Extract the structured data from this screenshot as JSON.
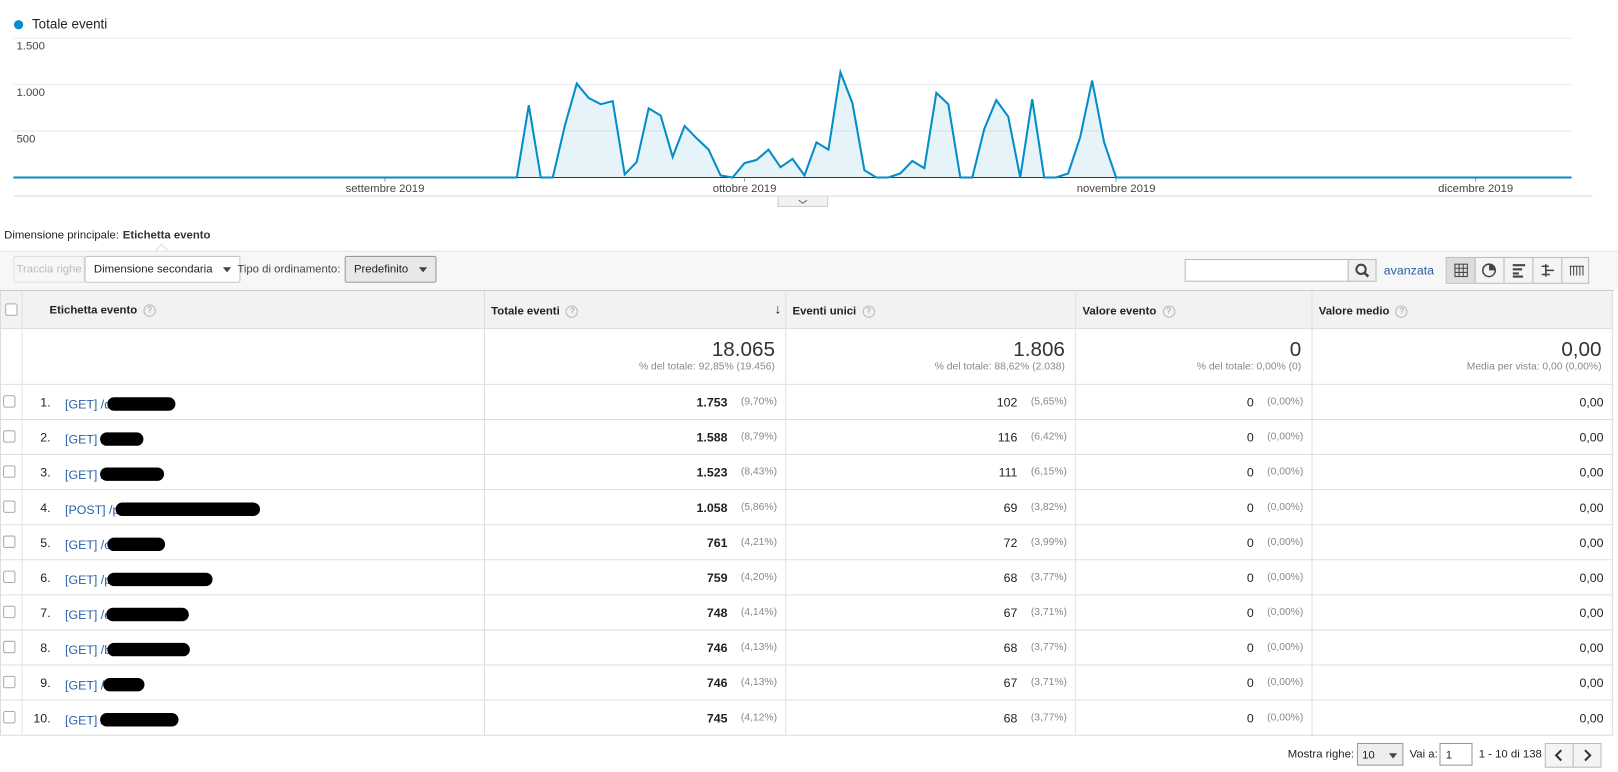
{
  "chart_data": {
    "type": "line",
    "categories": [
      null,
      null,
      null,
      null,
      null,
      null,
      null,
      null,
      null,
      null,
      null,
      null,
      null,
      null,
      null,
      null,
      null,
      null,
      null,
      null,
      null,
      null,
      null,
      null,
      null,
      null,
      null,
      null,
      null,
      null,
      null,
      "settembre 2019",
      null,
      null,
      null,
      null,
      null,
      null,
      null,
      null,
      null,
      null,
      null,
      null,
      null,
      null,
      null,
      null,
      null,
      null,
      null,
      null,
      null,
      null,
      null,
      null,
      null,
      null,
      null,
      null,
      null,
      "ottobre 2019",
      null,
      null,
      null,
      null,
      null,
      null,
      null,
      null,
      null,
      null,
      null,
      null,
      null,
      null,
      null,
      null,
      null,
      null,
      null,
      null,
      null,
      null,
      null,
      null,
      null,
      null,
      null,
      null,
      null,
      null,
      "novembre 2019",
      null,
      null,
      null,
      null,
      null,
      null,
      null,
      null,
      null,
      null,
      null,
      null,
      null,
      null,
      null,
      null,
      null,
      null,
      null,
      null,
      null,
      null,
      null,
      null,
      null,
      null,
      null,
      null,
      null,
      "dicembre 2019",
      null,
      null,
      null,
      null,
      null,
      null,
      null,
      null
    ],
    "series": [
      {
        "name": "Totale eventi",
        "color": "#058dc7",
        "values": [
          0,
          0,
          0,
          0,
          0,
          0,
          0,
          0,
          0,
          0,
          0,
          0,
          0,
          0,
          0,
          0,
          0,
          0,
          0,
          0,
          0,
          0,
          0,
          0,
          0,
          0,
          0,
          0,
          0,
          0,
          0,
          0,
          0,
          0,
          0,
          0,
          0,
          0,
          0,
          0,
          0,
          0,
          0,
          778,
          0,
          0,
          555,
          1011,
          855,
          789,
          822,
          33,
          167,
          744,
          667,
          222,
          555,
          422,
          300,
          22,
          0,
          155,
          189,
          300,
          111,
          200,
          22,
          378,
          300,
          1133,
          800,
          78,
          0,
          0,
          44,
          178,
          100,
          911,
          789,
          0,
          0,
          522,
          833,
          655,
          0,
          844,
          0,
          0,
          44,
          433,
          1044,
          378,
          0,
          0,
          0,
          0,
          0,
          0,
          0,
          0,
          0,
          0,
          0,
          0,
          0,
          0,
          0,
          0,
          0,
          0,
          0,
          0,
          0,
          0,
          0,
          0,
          0,
          0,
          0,
          0,
          0,
          0,
          0,
          0,
          0,
          0,
          0,
          0,
          0,
          0,
          0
        ]
      }
    ],
    "ylim": [
      0,
      1500
    ],
    "yticks": [
      500,
      {
        "value": 1000,
        "label": "1.000"
      },
      {
        "value": 1500,
        "label": "1.500"
      }
    ],
    "grid": true,
    "area": true,
    "legend": "top-left"
  },
  "header": {
    "primary_dimension_label": "Dimensione principale:",
    "primary_dimension": "Etichetta evento"
  },
  "toolbar": {
    "plot_rows": "Traccia righe",
    "secondary_dimension": "Dimensione secondaria",
    "sort_type_label": "Tipo di ordinamento:",
    "sort_type": "Predefinito",
    "advanced": "avanzata"
  },
  "table": {
    "columns": [
      "Etichetta evento",
      "Totale eventi",
      "Eventi unici",
      "Valore evento",
      "Valore medio"
    ],
    "totals": [
      [
        "18.065",
        "% del totale: 92,85% (19.456)"
      ],
      [
        "1.806",
        "% del totale: 88,62% (2.038)"
      ],
      [
        "0",
        "% del totale: 0,00% (0)"
      ],
      [
        "0,00",
        "Media per vista: 0,00 (0,00%)"
      ]
    ],
    "rows": [
      [
        "1.",
        "[GET] /d",
        "1.753",
        "(9,70%)",
        "102",
        "(5,65%)",
        "0",
        "(0,00%)",
        "0,00"
      ],
      [
        "2.",
        "[GET] /",
        "1.588",
        "(8,79%)",
        "116",
        "(6,42%)",
        "0",
        "(0,00%)",
        "0,00"
      ],
      [
        "3.",
        "[GET] /",
        "1.523",
        "(8,43%)",
        "111",
        "(6,15%)",
        "0",
        "(0,00%)",
        "0,00"
      ],
      [
        "4.",
        "[POST] /p",
        "1.058",
        "(5,86%)",
        "69",
        "(3,82%)",
        "0",
        "(0,00%)",
        "0,00"
      ],
      [
        "5.",
        "[GET] /o",
        "761",
        "(4,21%)",
        "72",
        "(3,99%)",
        "0",
        "(0,00%)",
        "0,00"
      ],
      [
        "6.",
        "[GET] /p",
        "759",
        "(4,20%)",
        "68",
        "(3,77%)",
        "0",
        "(0,00%)",
        "0,00"
      ],
      [
        "7.",
        "[GET] /c",
        "748",
        "(4,14%)",
        "67",
        "(3,71%)",
        "0",
        "(0,00%)",
        "0,00"
      ],
      [
        "8.",
        "[GET] /b",
        "746",
        "(4,13%)",
        "68",
        "(3,77%)",
        "0",
        "(0,00%)",
        "0,00"
      ],
      [
        "9.",
        "[GET] /l",
        "746",
        "(4,13%)",
        "67",
        "(3,71%)",
        "0",
        "(0,00%)",
        "0,00"
      ],
      [
        "10.",
        "[GET] /",
        "745",
        "(4,12%)",
        "68",
        "(3,77%)",
        "0",
        "(0,00%)",
        "0,00"
      ]
    ]
  },
  "pagination": {
    "rows_label": "Mostra righe:",
    "rows_value": "10",
    "goto_label": "Vai a:",
    "goto_value": "1",
    "range": "1 - 10 di 138"
  }
}
